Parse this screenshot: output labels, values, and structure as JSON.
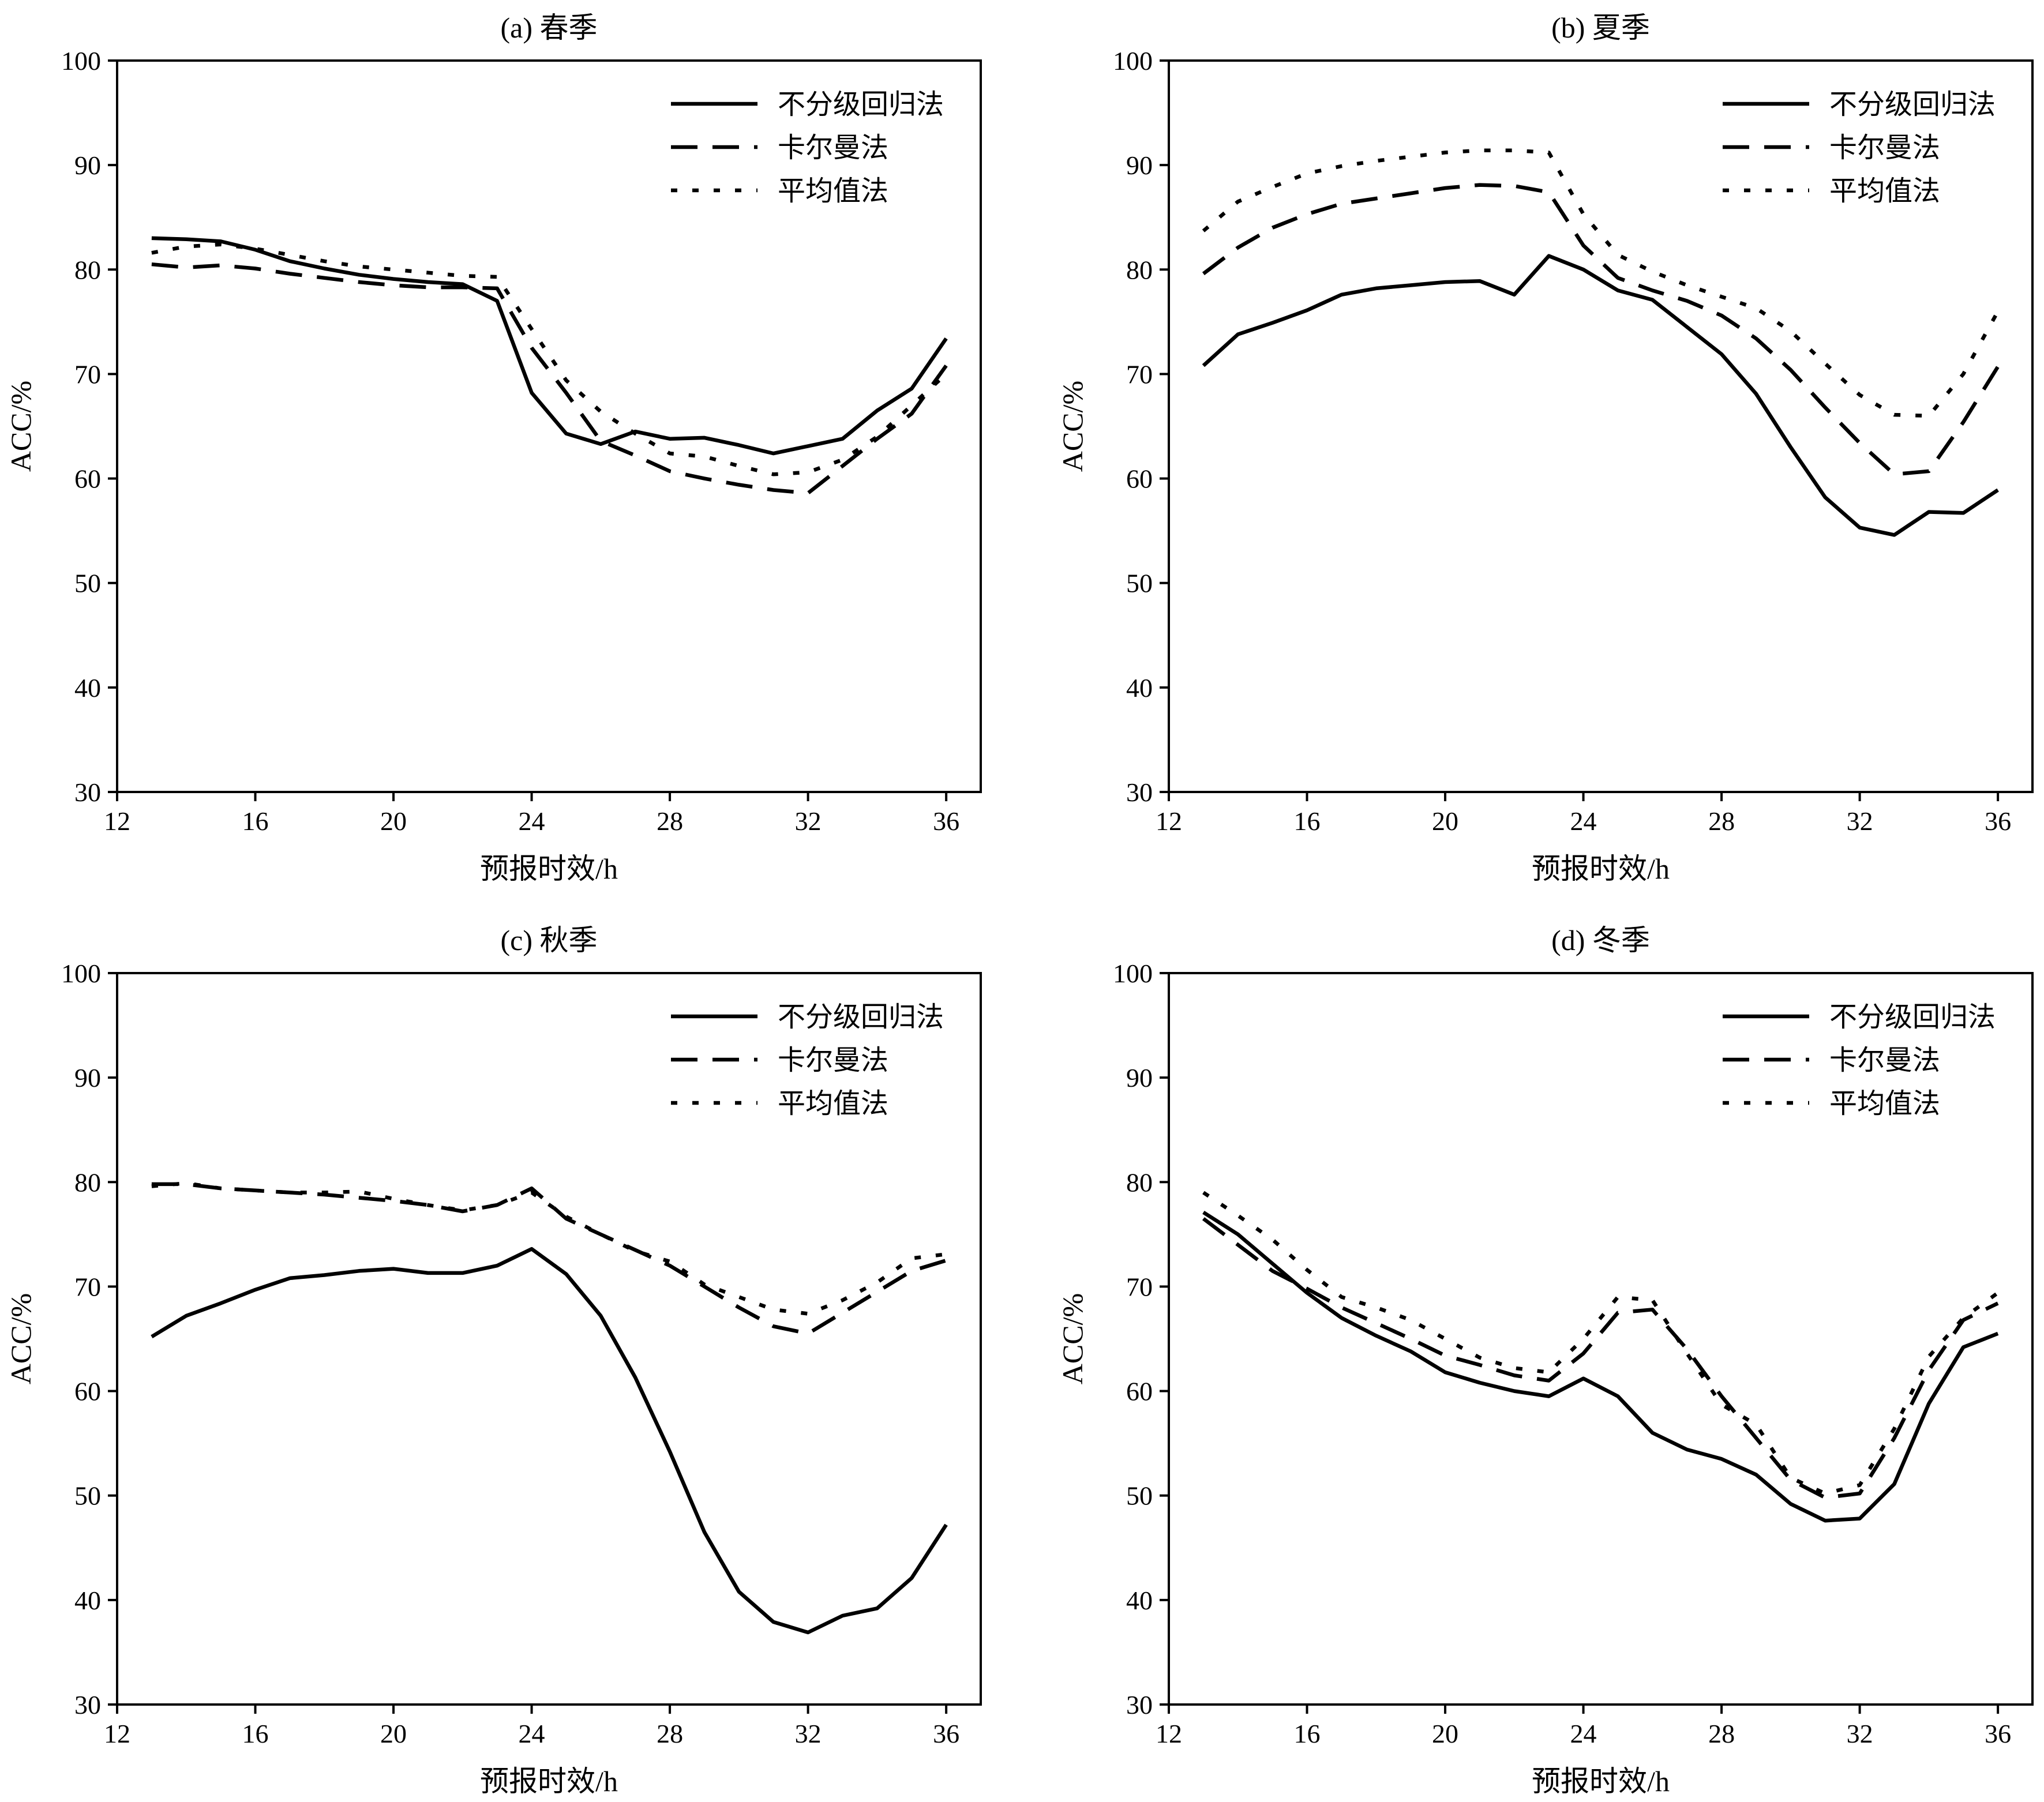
{
  "chart_data": [
    {
      "type": "line",
      "title": "(a) 春季",
      "xlabel": "预报时效/h",
      "ylabel": "ACC/%",
      "xlim": [
        12,
        37
      ],
      "ylim": [
        30,
        100
      ],
      "xticks": [
        12,
        16,
        20,
        24,
        28,
        32,
        36
      ],
      "yticks": [
        30,
        40,
        50,
        60,
        70,
        80,
        90,
        100
      ],
      "legend_position": "top-right",
      "x": [
        13,
        14,
        15,
        16,
        17,
        18,
        19,
        20,
        21,
        22,
        23,
        24,
        25,
        26,
        27,
        28,
        29,
        30,
        31,
        32,
        33,
        34,
        35,
        36
      ],
      "series": [
        {
          "name": "不分级回归法",
          "style": "solid",
          "values": [
            83.0,
            82.9,
            82.7,
            81.9,
            80.8,
            80.1,
            79.5,
            79.1,
            78.8,
            78.6,
            77.0,
            68.2,
            64.3,
            63.3,
            64.5,
            63.8,
            63.9,
            63.2,
            62.4,
            63.1,
            63.8,
            66.5,
            68.6,
            73.4
          ]
        },
        {
          "name": "卡尔曼法",
          "style": "dashed",
          "values": [
            80.5,
            80.2,
            80.4,
            80.1,
            79.6,
            79.2,
            78.8,
            78.5,
            78.3,
            78.3,
            78.2,
            72.5,
            68.2,
            63.6,
            62.2,
            60.7,
            60.0,
            59.4,
            58.9,
            58.6,
            61.2,
            63.8,
            66.2,
            70.8
          ]
        },
        {
          "name": "平均值法",
          "style": "dotted",
          "values": [
            81.6,
            82.2,
            82.4,
            82.0,
            81.4,
            80.8,
            80.3,
            80.0,
            79.7,
            79.4,
            79.3,
            74.3,
            69.4,
            66.4,
            64.3,
            62.4,
            62.1,
            61.2,
            60.4,
            60.6,
            61.8,
            64.0,
            67.0,
            70.0
          ]
        }
      ]
    },
    {
      "type": "line",
      "title": "(b) 夏季",
      "xlabel": "预报时效/h",
      "ylabel": "ACC/%",
      "xlim": [
        12,
        37
      ],
      "ylim": [
        30,
        100
      ],
      "xticks": [
        12,
        16,
        20,
        24,
        28,
        32,
        36
      ],
      "yticks": [
        30,
        40,
        50,
        60,
        70,
        80,
        90,
        100
      ],
      "legend_position": "top-right",
      "x": [
        13,
        14,
        15,
        16,
        17,
        18,
        19,
        20,
        21,
        22,
        23,
        24,
        25,
        26,
        27,
        28,
        29,
        30,
        31,
        32,
        33,
        34,
        35,
        36
      ],
      "series": [
        {
          "name": "不分级回归法",
          "style": "solid",
          "values": [
            70.8,
            73.8,
            74.9,
            76.1,
            77.6,
            78.2,
            78.5,
            78.8,
            78.9,
            77.6,
            81.3,
            80.0,
            78.0,
            77.1,
            74.5,
            71.9,
            68.1,
            63.0,
            58.2,
            55.3,
            54.6,
            56.8,
            56.7,
            58.9
          ]
        },
        {
          "name": "卡尔曼法",
          "style": "dashed",
          "values": [
            79.6,
            82.1,
            84.0,
            85.3,
            86.3,
            86.8,
            87.3,
            87.8,
            88.1,
            88.0,
            87.4,
            82.3,
            79.2,
            78.0,
            77.0,
            75.6,
            73.4,
            70.4,
            66.8,
            63.4,
            60.4,
            60.7,
            65.4,
            70.7
          ]
        },
        {
          "name": "平均值法",
          "style": "dotted",
          "values": [
            83.7,
            86.5,
            87.9,
            89.2,
            89.9,
            90.4,
            90.8,
            91.2,
            91.4,
            91.4,
            91.2,
            85.3,
            81.4,
            79.8,
            78.5,
            77.4,
            76.3,
            74.1,
            71.0,
            68.0,
            66.1,
            66.0,
            70.0,
            76.0
          ]
        }
      ]
    },
    {
      "type": "line",
      "title": "(c) 秋季",
      "xlabel": "预报时效/h",
      "ylabel": "ACC/%",
      "xlim": [
        12,
        37
      ],
      "ylim": [
        30,
        100
      ],
      "xticks": [
        12,
        16,
        20,
        24,
        28,
        32,
        36
      ],
      "yticks": [
        30,
        40,
        50,
        60,
        70,
        80,
        90,
        100
      ],
      "legend_position": "top-right",
      "x": [
        13,
        14,
        15,
        16,
        17,
        18,
        19,
        20,
        21,
        22,
        23,
        24,
        25,
        26,
        27,
        28,
        29,
        30,
        31,
        32,
        33,
        34,
        35,
        36
      ],
      "series": [
        {
          "name": "不分级回归法",
          "style": "solid",
          "values": [
            65.2,
            67.2,
            68.4,
            69.7,
            70.8,
            71.1,
            71.5,
            71.7,
            71.3,
            71.3,
            72.0,
            73.6,
            71.2,
            67.2,
            61.3,
            54.2,
            46.5,
            40.8,
            37.9,
            36.9,
            38.5,
            39.2,
            42.1,
            47.2
          ]
        },
        {
          "name": "卡尔曼法",
          "style": "dashed",
          "values": [
            79.8,
            79.8,
            79.4,
            79.2,
            79.0,
            78.8,
            78.5,
            78.2,
            77.8,
            77.2,
            77.8,
            79.4,
            76.5,
            75.0,
            73.5,
            72.0,
            70.0,
            68.0,
            66.2,
            65.5,
            67.5,
            69.5,
            71.5,
            72.5
          ]
        },
        {
          "name": "平均值法",
          "style": "dotted",
          "values": [
            79.6,
            79.9,
            79.4,
            79.2,
            79.0,
            79.0,
            79.1,
            78.4,
            77.8,
            77.3,
            77.8,
            79.0,
            76.7,
            75.0,
            73.4,
            72.4,
            70.2,
            69.0,
            67.8,
            67.4,
            68.7,
            70.4,
            72.7,
            73.1
          ]
        }
      ]
    },
    {
      "type": "line",
      "title": "(d) 冬季",
      "xlabel": "预报时效/h",
      "ylabel": "ACC/%",
      "xlim": [
        12,
        37
      ],
      "ylim": [
        30,
        100
      ],
      "xticks": [
        12,
        16,
        20,
        24,
        28,
        32,
        36
      ],
      "yticks": [
        30,
        40,
        50,
        60,
        70,
        80,
        90,
        100
      ],
      "legend_position": "top-right",
      "x": [
        13,
        14,
        15,
        16,
        17,
        18,
        19,
        20,
        21,
        22,
        23,
        24,
        25,
        26,
        27,
        28,
        29,
        30,
        31,
        32,
        33,
        34,
        35,
        36
      ],
      "series": [
        {
          "name": "不分级回归法",
          "style": "solid",
          "values": [
            77.1,
            75.0,
            72.2,
            69.4,
            67.0,
            65.3,
            63.8,
            61.8,
            60.8,
            60.0,
            59.5,
            61.2,
            59.5,
            56.0,
            54.4,
            53.5,
            52.0,
            49.2,
            47.6,
            47.8,
            51.1,
            58.8,
            64.2,
            65.5
          ]
        },
        {
          "name": "卡尔曼法",
          "style": "dashed",
          "values": [
            76.5,
            74.0,
            71.5,
            69.8,
            68.0,
            66.5,
            65.0,
            63.4,
            62.5,
            61.5,
            61.0,
            63.6,
            67.5,
            67.8,
            64.0,
            59.5,
            55.5,
            51.5,
            49.8,
            50.2,
            55.5,
            62.0,
            66.8,
            68.4
          ]
        },
        {
          "name": "平均值法",
          "style": "dotted",
          "values": [
            79.0,
            76.8,
            74.5,
            71.6,
            69.0,
            68.0,
            66.8,
            65.0,
            63.2,
            62.2,
            61.8,
            65.0,
            69.0,
            68.7,
            63.6,
            58.7,
            56.8,
            51.7,
            50.2,
            51.0,
            56.4,
            63.3,
            67.0,
            69.4
          ]
        }
      ]
    }
  ]
}
